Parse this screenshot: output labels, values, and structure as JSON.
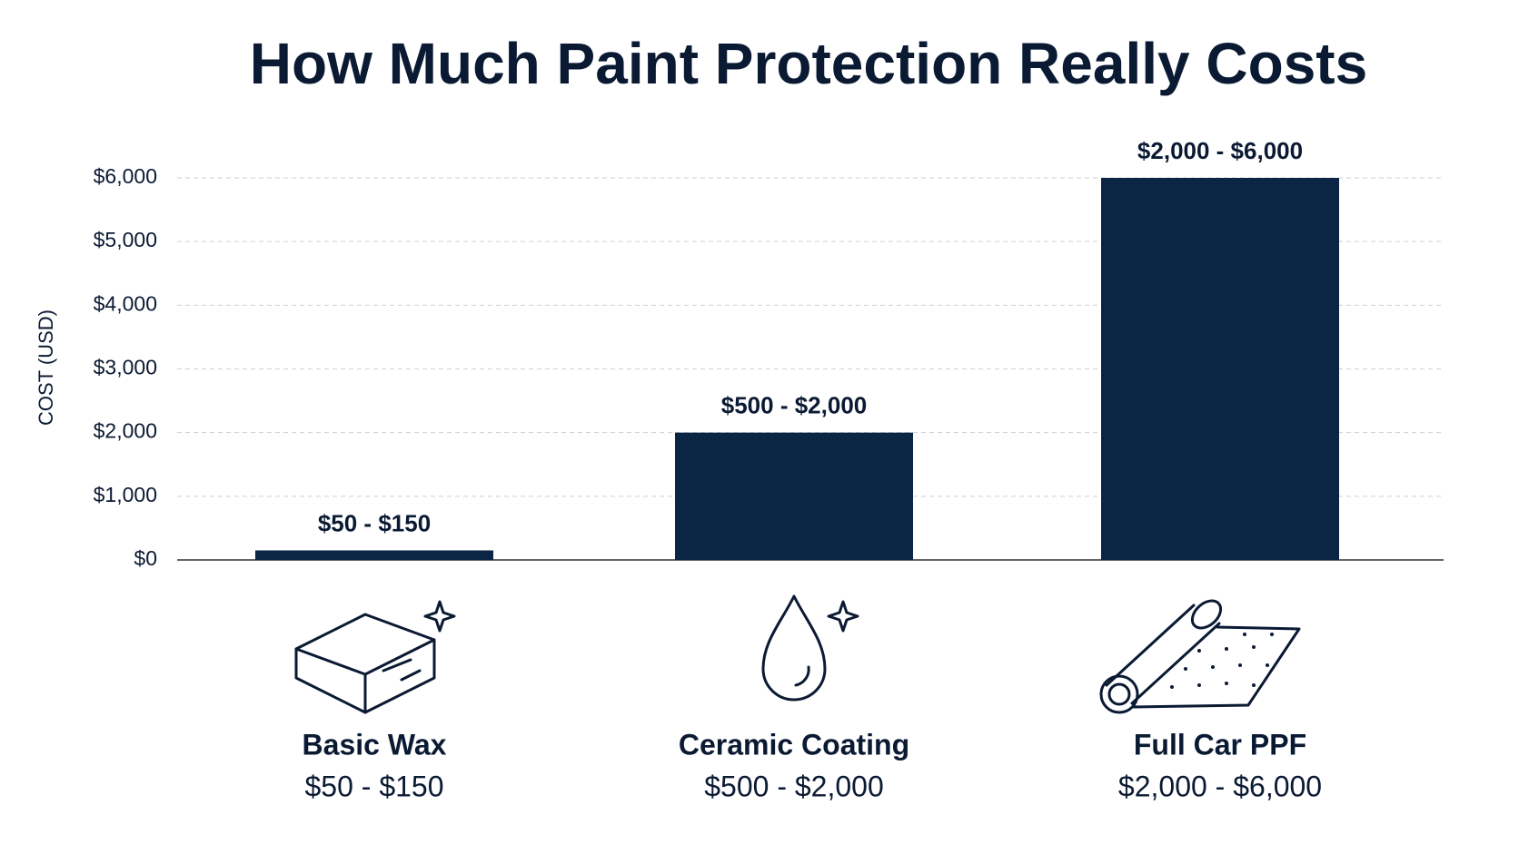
{
  "chart_data": {
    "type": "bar",
    "title": "How Much Paint Protection Really Costs",
    "ylabel": "COST (USD)",
    "categories": [
      "Basic Wax",
      "Ceramic Coating",
      "Full Car PPF"
    ],
    "values": [
      150,
      2000,
      6000
    ],
    "value_labels": [
      "$50 - $150",
      "$500 - $2,000",
      "$2,000 - $6,000"
    ],
    "color": "#0b2545",
    "ylim": [
      0,
      6000
    ],
    "yticks": [
      {
        "value": 0,
        "label": "$0"
      },
      {
        "value": 1000,
        "label": "$1,000"
      },
      {
        "value": 2000,
        "label": "$2,000"
      },
      {
        "value": 3000,
        "label": "$3,000"
      },
      {
        "value": 4000,
        "label": "$4,000"
      },
      {
        "value": 5000,
        "label": "$5,000"
      },
      {
        "value": 6000,
        "label": "$6,000"
      }
    ],
    "grid": true
  }
}
